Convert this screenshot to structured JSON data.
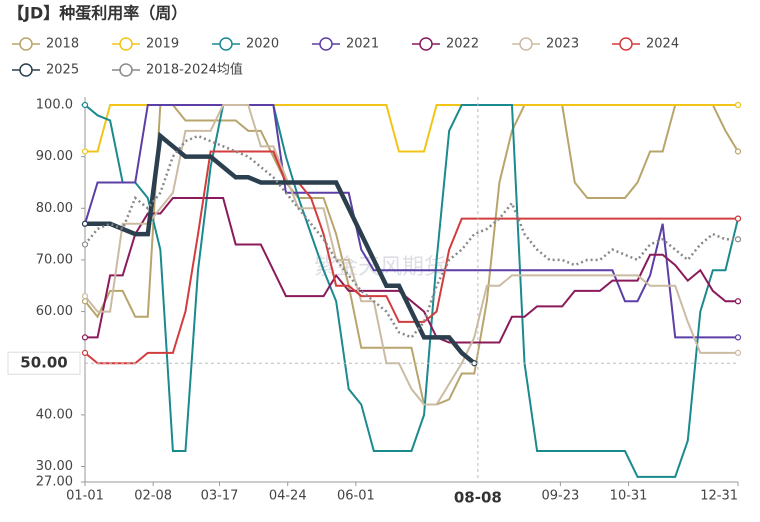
{
  "chart_data": {
    "type": "line",
    "title": "【JD】种蛋利用率（周）",
    "watermark": "紫金天风期货",
    "x": [
      0,
      7,
      14,
      21,
      28,
      35,
      42,
      49,
      56,
      63,
      70,
      77,
      84,
      91,
      98,
      105,
      112,
      119,
      126,
      133,
      140,
      147,
      154,
      161,
      168,
      175,
      182,
      189,
      196,
      203,
      210,
      217,
      224,
      231,
      238,
      245,
      252,
      259,
      266,
      273,
      280,
      287,
      294,
      301,
      308,
      315,
      322,
      329,
      336,
      343,
      350,
      357,
      364
    ],
    "xlim": [
      0,
      364
    ],
    "xticks": [
      {
        "value": 0,
        "label": "01-01"
      },
      {
        "value": 38,
        "label": "02-08"
      },
      {
        "value": 75,
        "label": "03-17"
      },
      {
        "value": 113,
        "label": "04-24"
      },
      {
        "value": 151,
        "label": "06-01"
      },
      {
        "value": 265,
        "label": "09-23"
      },
      {
        "value": 303,
        "label": "10-31"
      },
      {
        "value": 364,
        "label": "12-31"
      }
    ],
    "ylim": [
      27,
      100
    ],
    "yticks": [
      {
        "value": 100,
        "label": "100.0"
      },
      {
        "value": 90,
        "label": "90.00"
      },
      {
        "value": 80,
        "label": "80.00"
      },
      {
        "value": 70,
        "label": "70.00"
      },
      {
        "value": 60,
        "label": "60.00"
      },
      {
        "value": 40,
        "label": "40.00"
      },
      {
        "value": 30,
        "label": "30.00"
      },
      {
        "value": 27,
        "label": "27.00"
      }
    ],
    "cursor": {
      "x": 219,
      "x_label": "08-08",
      "y": 50,
      "y_label": "50.00"
    },
    "series": [
      {
        "name": "2018",
        "color": "#b8a56c",
        "values": [
          62,
          59,
          64,
          64,
          59,
          59,
          100,
          100,
          97,
          97,
          97,
          97,
          97,
          95,
          95,
          90,
          85,
          82,
          82,
          82,
          75,
          65,
          53,
          53,
          53,
          53,
          53,
          42,
          42,
          43,
          48,
          48,
          62,
          85,
          95,
          100,
          100,
          100,
          100,
          85,
          82,
          82,
          82,
          82,
          85,
          91,
          91,
          100,
          100,
          100,
          100,
          95,
          91
        ]
      },
      {
        "name": "2019",
        "color": "#f2c418",
        "values": [
          91,
          91,
          100,
          100,
          100,
          100,
          100,
          100,
          100,
          100,
          100,
          100,
          100,
          100,
          100,
          100,
          100,
          100,
          100,
          100,
          100,
          100,
          100,
          100,
          100,
          91,
          91,
          91,
          100,
          100,
          100,
          100,
          100,
          100,
          100,
          100,
          100,
          100,
          100,
          100,
          100,
          100,
          100,
          100,
          100,
          100,
          100,
          100,
          100,
          100,
          100,
          100,
          100
        ]
      },
      {
        "name": "2020",
        "color": "#1a8a8f",
        "values": [
          100,
          98,
          97,
          85,
          85,
          82,
          72,
          33,
          33,
          68,
          88,
          100,
          100,
          100,
          100,
          100,
          90,
          82,
          75,
          68,
          62,
          45,
          42,
          33,
          33,
          33,
          33,
          40,
          70,
          95,
          100,
          100,
          100,
          100,
          100,
          50,
          33,
          33,
          33,
          33,
          33,
          33,
          33,
          33,
          28,
          28,
          28,
          28,
          35,
          60,
          68,
          68,
          78
        ]
      },
      {
        "name": "2021",
        "color": "#5b3fa6",
        "values": [
          77,
          85,
          85,
          85,
          85,
          100,
          100,
          100,
          100,
          100,
          100,
          100,
          100,
          100,
          100,
          100,
          83,
          83,
          83,
          83,
          83,
          83,
          72,
          68,
          68,
          68,
          68,
          68,
          68,
          68,
          68,
          68,
          68,
          68,
          68,
          68,
          68,
          68,
          68,
          68,
          68,
          68,
          68,
          62,
          62,
          67,
          77,
          55,
          55,
          55,
          55,
          55,
          55
        ]
      },
      {
        "name": "2022",
        "color": "#8b1a5a",
        "values": [
          55,
          55,
          67,
          67,
          75,
          79,
          79,
          82,
          82,
          82,
          82,
          82,
          73,
          73,
          73,
          68,
          63,
          63,
          63,
          63,
          67,
          64,
          64,
          64,
          64,
          64,
          62,
          60,
          55,
          54,
          54,
          54,
          54,
          54,
          59,
          59,
          61,
          61,
          61,
          64,
          64,
          64,
          66,
          66,
          66,
          71,
          71,
          69,
          66,
          68,
          64,
          62,
          62
        ]
      },
      {
        "name": "2023",
        "color": "#cbbba3",
        "values": [
          63,
          60,
          60,
          77,
          77,
          77,
          80,
          83,
          95,
          95,
          95,
          100,
          100,
          100,
          92,
          92,
          86,
          80,
          80,
          80,
          70,
          70,
          62,
          62,
          50,
          50,
          45,
          42,
          42,
          46,
          50,
          55,
          65,
          65,
          67,
          67,
          67,
          67,
          67,
          67,
          67,
          67,
          67,
          67,
          67,
          65,
          65,
          65,
          58,
          52,
          52,
          52,
          52
        ]
      },
      {
        "name": "2024",
        "color": "#d23c3c",
        "values": [
          52,
          50,
          50,
          50,
          50,
          52,
          52,
          52,
          60,
          75,
          91,
          91,
          91,
          91,
          91,
          91,
          85,
          85,
          82,
          75,
          65,
          65,
          63,
          63,
          63,
          58,
          58,
          58,
          60,
          72,
          78,
          78,
          78,
          78,
          78,
          78,
          78,
          78,
          78,
          78,
          78,
          78,
          78,
          78,
          78,
          78,
          78,
          78,
          78,
          78,
          78,
          78,
          78
        ]
      },
      {
        "name": "2025",
        "color": "#2b3f4e",
        "values": [
          77,
          77,
          77,
          76,
          75,
          75,
          94,
          92,
          90,
          90,
          90,
          88,
          86,
          86,
          85,
          85,
          85,
          85,
          85,
          85,
          85,
          80,
          75,
          70,
          65,
          65,
          60,
          55,
          55,
          55,
          52,
          50,
          null,
          null,
          null,
          null,
          null,
          null,
          null,
          null,
          null,
          null,
          null,
          null,
          null,
          null,
          null,
          null,
          null,
          null,
          null,
          null,
          null
        ]
      },
      {
        "name": "2018-2024均值",
        "color": "#888888",
        "values": [
          73,
          76,
          77,
          76,
          82,
          80,
          83,
          90,
          93,
          94,
          93,
          92,
          91,
          90,
          88,
          86,
          83,
          80,
          77,
          74,
          70,
          67,
          64,
          62,
          60,
          56,
          55,
          58,
          65,
          70,
          72,
          75,
          76,
          78,
          81,
          75,
          72,
          70,
          70,
          69,
          70,
          70,
          72,
          71,
          70,
          73,
          74,
          72,
          70,
          73,
          75,
          74,
          74
        ]
      }
    ]
  }
}
